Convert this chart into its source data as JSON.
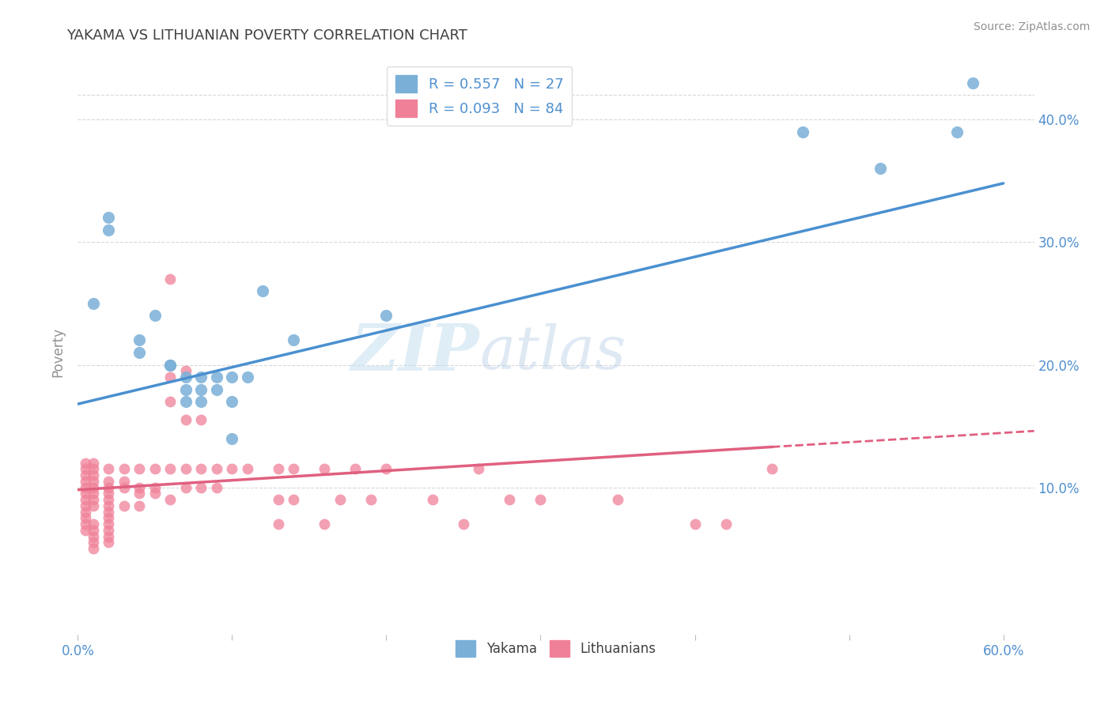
{
  "title": "YAKAMA VS LITHUANIAN POVERTY CORRELATION CHART",
  "source": "Source: ZipAtlas.com",
  "ylabel": "Poverty",
  "right_yticks": [
    "10.0%",
    "20.0%",
    "30.0%",
    "40.0%"
  ],
  "right_ytick_vals": [
    0.1,
    0.2,
    0.3,
    0.4
  ],
  "xlim": [
    0.0,
    0.62
  ],
  "ylim": [
    -0.02,
    0.44
  ],
  "legend_entries": [
    {
      "label": "R = 0.557   N = 27",
      "color": "#a8c4e0"
    },
    {
      "label": "R = 0.093   N = 84",
      "color": "#f4a8b8"
    }
  ],
  "legend_labels": [
    "Yakama",
    "Lithuanians"
  ],
  "watermark": "ZIPatlas",
  "yakama_color": "#7ab0d8",
  "lithuanian_color": "#f08098",
  "trendline_yakama_color": "#4a90d0",
  "trendline_lithuanian_color": "#e06080",
  "background_color": "#ffffff",
  "grid_color": "#d8d8d8",
  "title_color": "#404040",
  "axis_label_color": "#5090d0",
  "yakama_R": 0.557,
  "lithuanian_R": 0.093,
  "yakama_points": [
    [
      0.01,
      0.25
    ],
    [
      0.02,
      0.32
    ],
    [
      0.02,
      0.31
    ],
    [
      0.04,
      0.22
    ],
    [
      0.04,
      0.21
    ],
    [
      0.05,
      0.24
    ],
    [
      0.06,
      0.2
    ],
    [
      0.06,
      0.2
    ],
    [
      0.07,
      0.19
    ],
    [
      0.07,
      0.18
    ],
    [
      0.07,
      0.17
    ],
    [
      0.08,
      0.19
    ],
    [
      0.08,
      0.18
    ],
    [
      0.08,
      0.17
    ],
    [
      0.09,
      0.19
    ],
    [
      0.09,
      0.18
    ],
    [
      0.1,
      0.19
    ],
    [
      0.1,
      0.17
    ],
    [
      0.1,
      0.14
    ],
    [
      0.11,
      0.19
    ],
    [
      0.12,
      0.26
    ],
    [
      0.14,
      0.22
    ],
    [
      0.2,
      0.24
    ],
    [
      0.47,
      0.39
    ],
    [
      0.52,
      0.36
    ],
    [
      0.57,
      0.39
    ],
    [
      0.58,
      0.43
    ]
  ],
  "lithuanian_points": [
    [
      0.005,
      0.12
    ],
    [
      0.005,
      0.115
    ],
    [
      0.005,
      0.11
    ],
    [
      0.005,
      0.105
    ],
    [
      0.005,
      0.1
    ],
    [
      0.005,
      0.095
    ],
    [
      0.005,
      0.09
    ],
    [
      0.005,
      0.085
    ],
    [
      0.005,
      0.08
    ],
    [
      0.005,
      0.075
    ],
    [
      0.005,
      0.07
    ],
    [
      0.005,
      0.065
    ],
    [
      0.01,
      0.12
    ],
    [
      0.01,
      0.115
    ],
    [
      0.01,
      0.11
    ],
    [
      0.01,
      0.105
    ],
    [
      0.01,
      0.1
    ],
    [
      0.01,
      0.095
    ],
    [
      0.01,
      0.09
    ],
    [
      0.01,
      0.085
    ],
    [
      0.01,
      0.07
    ],
    [
      0.01,
      0.065
    ],
    [
      0.01,
      0.06
    ],
    [
      0.01,
      0.055
    ],
    [
      0.01,
      0.05
    ],
    [
      0.02,
      0.115
    ],
    [
      0.02,
      0.105
    ],
    [
      0.02,
      0.1
    ],
    [
      0.02,
      0.095
    ],
    [
      0.02,
      0.09
    ],
    [
      0.02,
      0.085
    ],
    [
      0.02,
      0.08
    ],
    [
      0.02,
      0.075
    ],
    [
      0.02,
      0.07
    ],
    [
      0.02,
      0.065
    ],
    [
      0.02,
      0.06
    ],
    [
      0.02,
      0.055
    ],
    [
      0.03,
      0.115
    ],
    [
      0.03,
      0.105
    ],
    [
      0.03,
      0.1
    ],
    [
      0.03,
      0.085
    ],
    [
      0.04,
      0.115
    ],
    [
      0.04,
      0.1
    ],
    [
      0.04,
      0.095
    ],
    [
      0.04,
      0.085
    ],
    [
      0.05,
      0.115
    ],
    [
      0.05,
      0.1
    ],
    [
      0.05,
      0.095
    ],
    [
      0.06,
      0.27
    ],
    [
      0.06,
      0.19
    ],
    [
      0.06,
      0.17
    ],
    [
      0.06,
      0.115
    ],
    [
      0.06,
      0.09
    ],
    [
      0.07,
      0.195
    ],
    [
      0.07,
      0.155
    ],
    [
      0.07,
      0.115
    ],
    [
      0.07,
      0.1
    ],
    [
      0.08,
      0.155
    ],
    [
      0.08,
      0.115
    ],
    [
      0.08,
      0.1
    ],
    [
      0.09,
      0.115
    ],
    [
      0.09,
      0.1
    ],
    [
      0.1,
      0.115
    ],
    [
      0.11,
      0.115
    ],
    [
      0.13,
      0.115
    ],
    [
      0.13,
      0.09
    ],
    [
      0.13,
      0.07
    ],
    [
      0.14,
      0.115
    ],
    [
      0.14,
      0.09
    ],
    [
      0.16,
      0.115
    ],
    [
      0.16,
      0.07
    ],
    [
      0.17,
      0.09
    ],
    [
      0.18,
      0.115
    ],
    [
      0.19,
      0.09
    ],
    [
      0.2,
      0.115
    ],
    [
      0.23,
      0.09
    ],
    [
      0.25,
      0.07
    ],
    [
      0.26,
      0.115
    ],
    [
      0.28,
      0.09
    ],
    [
      0.3,
      0.09
    ],
    [
      0.35,
      0.09
    ],
    [
      0.4,
      0.07
    ],
    [
      0.42,
      0.07
    ],
    [
      0.45,
      0.115
    ]
  ]
}
